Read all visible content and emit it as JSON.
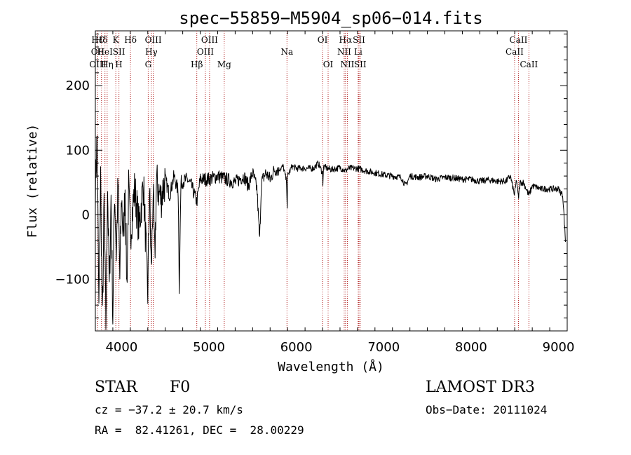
{
  "chart_data": {
    "type": "line",
    "title": "spec−55859−M5904_sp06−014.fits",
    "xlabel": "Wavelength (Å)",
    "ylabel": "Flux (relative)",
    "xlim": [
      3700,
      9100
    ],
    "ylim": [
      -180,
      285
    ],
    "xticks": [
      4000,
      5000,
      6000,
      7000,
      8000,
      9000
    ],
    "yticks": [
      -100,
      0,
      100,
      200
    ],
    "ytick_labels": [
      "−100",
      "0",
      "100",
      "200"
    ],
    "line_color": "#000000",
    "marker_color": "#b22222",
    "grid": false,
    "spectrum_anchors": [
      [
        3700,
        40
      ],
      [
        3720,
        120
      ],
      [
        3740,
        -150
      ],
      [
        3760,
        60
      ],
      [
        3780,
        -170
      ],
      [
        3800,
        20
      ],
      [
        3820,
        -175
      ],
      [
        3840,
        50
      ],
      [
        3860,
        -120
      ],
      [
        3880,
        30
      ],
      [
        3900,
        -160
      ],
      [
        3920,
        40
      ],
      [
        3940,
        -60
      ],
      [
        3960,
        50
      ],
      [
        3980,
        -100
      ],
      [
        4000,
        30
      ],
      [
        4020,
        -40
      ],
      [
        4040,
        45
      ],
      [
        4060,
        -110
      ],
      [
        4080,
        40
      ],
      [
        4100,
        -30
      ],
      [
        4150,
        40
      ],
      [
        4200,
        -20
      ],
      [
        4250,
        50
      ],
      [
        4300,
        -120
      ],
      [
        4320,
        40
      ],
      [
        4340,
        -90
      ],
      [
        4360,
        35
      ],
      [
        4380,
        -70
      ],
      [
        4400,
        50
      ],
      [
        4450,
        25
      ],
      [
        4500,
        55
      ],
      [
        4550,
        30
      ],
      [
        4600,
        60
      ],
      [
        4650,
        35
      ],
      [
        4660,
        -115
      ],
      [
        4680,
        50
      ],
      [
        4750,
        55
      ],
      [
        4800,
        45
      ],
      [
        4861,
        20
      ],
      [
        4900,
        55
      ],
      [
        5000,
        55
      ],
      [
        5100,
        60
      ],
      [
        5200,
        55
      ],
      [
        5300,
        50
      ],
      [
        5400,
        60
      ],
      [
        5450,
        45
      ],
      [
        5500,
        65
      ],
      [
        5550,
        40
      ],
      [
        5580,
        -40
      ],
      [
        5600,
        50
      ],
      [
        5650,
        65
      ],
      [
        5700,
        55
      ],
      [
        5750,
        70
      ],
      [
        5800,
        70
      ],
      [
        5850,
        75
      ],
      [
        5890,
        50
      ],
      [
        5895,
        0
      ],
      [
        5900,
        60
      ],
      [
        5950,
        75
      ],
      [
        6000,
        72
      ],
      [
        6100,
        72
      ],
      [
        6200,
        72
      ],
      [
        6250,
        80
      ],
      [
        6300,
        65
      ],
      [
        6305,
        45
      ],
      [
        6310,
        75
      ],
      [
        6350,
        72
      ],
      [
        6400,
        70
      ],
      [
        6500,
        73
      ],
      [
        6563,
        68
      ],
      [
        6600,
        72
      ],
      [
        6700,
        72
      ],
      [
        6800,
        68
      ],
      [
        6900,
        65
      ],
      [
        7000,
        62
      ],
      [
        7100,
        60
      ],
      [
        7200,
        58
      ],
      [
        7250,
        45
      ],
      [
        7300,
        60
      ],
      [
        7400,
        58
      ],
      [
        7500,
        60
      ],
      [
        7600,
        55
      ],
      [
        7700,
        58
      ],
      [
        7800,
        57
      ],
      [
        7900,
        55
      ],
      [
        8000,
        55
      ],
      [
        8100,
        52
      ],
      [
        8200,
        54
      ],
      [
        8300,
        52
      ],
      [
        8400,
        52
      ],
      [
        8450,
        60
      ],
      [
        8498,
        30
      ],
      [
        8520,
        55
      ],
      [
        8542,
        25
      ],
      [
        8560,
        50
      ],
      [
        8600,
        50
      ],
      [
        8662,
        30
      ],
      [
        8700,
        45
      ],
      [
        8800,
        40
      ],
      [
        8900,
        40
      ],
      [
        9000,
        40
      ],
      [
        9050,
        30
      ],
      [
        9080,
        -40
      ]
    ],
    "line_markers": [
      {
        "label": "HƐ",
        "wavelength": 3727,
        "row": 1
      },
      {
        "label": "OII",
        "wavelength": 3727,
        "row": 2
      },
      {
        "label": "OIII",
        "wavelength": 3727,
        "row": 3
      },
      {
        "label": "Hδ",
        "wavelength": 3770,
        "row": 1
      },
      {
        "label": "HeI",
        "wavelength": 3810,
        "row": 2
      },
      {
        "label": "Hη",
        "wavelength": 3835,
        "row": 3
      },
      {
        "label": "K",
        "wavelength": 3934,
        "row": 1
      },
      {
        "label": "SII",
        "wavelength": 3970,
        "row": 2
      },
      {
        "label": "H",
        "wavelength": 3969,
        "row": 3
      },
      {
        "label": "Hδ",
        "wavelength": 4102,
        "row": 1
      },
      {
        "label": "OIII",
        "wavelength": 4363,
        "row": 1
      },
      {
        "label": "Hγ",
        "wavelength": 4341,
        "row": 2
      },
      {
        "label": "G",
        "wavelength": 4305,
        "row": 3
      },
      {
        "label": "Hβ",
        "wavelength": 4861,
        "row": 3
      },
      {
        "label": "OIII",
        "wavelength": 5007,
        "row": 1
      },
      {
        "label": "OIII",
        "wavelength": 4959,
        "row": 2
      },
      {
        "label": "Mg",
        "wavelength": 5175,
        "row": 3
      },
      {
        "label": "Na",
        "wavelength": 5893,
        "row": 2
      },
      {
        "label": "OI",
        "wavelength": 6300,
        "row": 1
      },
      {
        "label": "OI",
        "wavelength": 6364,
        "row": 3
      },
      {
        "label": "Hα",
        "wavelength": 6563,
        "row": 1
      },
      {
        "label": "NII",
        "wavelength": 6548,
        "row": 2
      },
      {
        "label": "NII",
        "wavelength": 6584,
        "row": 3
      },
      {
        "label": "SII",
        "wavelength": 6717,
        "row": 1
      },
      {
        "label": "Li",
        "wavelength": 6708,
        "row": 2
      },
      {
        "label": "SII",
        "wavelength": 6731,
        "row": 3
      },
      {
        "label": "CaII",
        "wavelength": 8542,
        "row": 1
      },
      {
        "label": "CaII",
        "wavelength": 8498,
        "row": 2
      },
      {
        "label": "CaII",
        "wavelength": 8662,
        "row": 3
      }
    ]
  },
  "info": {
    "class": "STAR",
    "subclass": "F0",
    "survey": "LAMOST DR3",
    "redshift": "cz = −37.2 ± 20.7 km/s",
    "obs_date": "Obs−Date: 20111024",
    "coords": "RA =  82.41261, DEC =  28.00229"
  }
}
